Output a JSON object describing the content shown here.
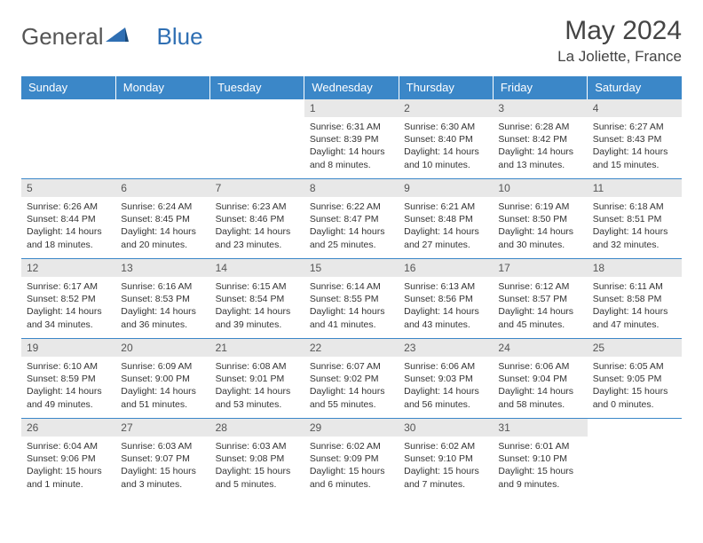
{
  "brand": {
    "word1": "General",
    "word2": "Blue"
  },
  "title": "May 2024",
  "location": "La Joliette, France",
  "colors": {
    "header_bg": "#3b87c8",
    "header_text": "#ffffff",
    "daynum_bg": "#e8e8e8",
    "border": "#3b87c8",
    "text": "#333333",
    "brand_accent": "#2f6fb3"
  },
  "day_headers": [
    "Sunday",
    "Monday",
    "Tuesday",
    "Wednesday",
    "Thursday",
    "Friday",
    "Saturday"
  ],
  "weeks": [
    [
      {
        "n": "",
        "sunrise": "",
        "sunset": "",
        "daylight1": "",
        "daylight2": ""
      },
      {
        "n": "",
        "sunrise": "",
        "sunset": "",
        "daylight1": "",
        "daylight2": ""
      },
      {
        "n": "",
        "sunrise": "",
        "sunset": "",
        "daylight1": "",
        "daylight2": ""
      },
      {
        "n": "1",
        "sunrise": "Sunrise: 6:31 AM",
        "sunset": "Sunset: 8:39 PM",
        "daylight1": "Daylight: 14 hours",
        "daylight2": "and 8 minutes."
      },
      {
        "n": "2",
        "sunrise": "Sunrise: 6:30 AM",
        "sunset": "Sunset: 8:40 PM",
        "daylight1": "Daylight: 14 hours",
        "daylight2": "and 10 minutes."
      },
      {
        "n": "3",
        "sunrise": "Sunrise: 6:28 AM",
        "sunset": "Sunset: 8:42 PM",
        "daylight1": "Daylight: 14 hours",
        "daylight2": "and 13 minutes."
      },
      {
        "n": "4",
        "sunrise": "Sunrise: 6:27 AM",
        "sunset": "Sunset: 8:43 PM",
        "daylight1": "Daylight: 14 hours",
        "daylight2": "and 15 minutes."
      }
    ],
    [
      {
        "n": "5",
        "sunrise": "Sunrise: 6:26 AM",
        "sunset": "Sunset: 8:44 PM",
        "daylight1": "Daylight: 14 hours",
        "daylight2": "and 18 minutes."
      },
      {
        "n": "6",
        "sunrise": "Sunrise: 6:24 AM",
        "sunset": "Sunset: 8:45 PM",
        "daylight1": "Daylight: 14 hours",
        "daylight2": "and 20 minutes."
      },
      {
        "n": "7",
        "sunrise": "Sunrise: 6:23 AM",
        "sunset": "Sunset: 8:46 PM",
        "daylight1": "Daylight: 14 hours",
        "daylight2": "and 23 minutes."
      },
      {
        "n": "8",
        "sunrise": "Sunrise: 6:22 AM",
        "sunset": "Sunset: 8:47 PM",
        "daylight1": "Daylight: 14 hours",
        "daylight2": "and 25 minutes."
      },
      {
        "n": "9",
        "sunrise": "Sunrise: 6:21 AM",
        "sunset": "Sunset: 8:48 PM",
        "daylight1": "Daylight: 14 hours",
        "daylight2": "and 27 minutes."
      },
      {
        "n": "10",
        "sunrise": "Sunrise: 6:19 AM",
        "sunset": "Sunset: 8:50 PM",
        "daylight1": "Daylight: 14 hours",
        "daylight2": "and 30 minutes."
      },
      {
        "n": "11",
        "sunrise": "Sunrise: 6:18 AM",
        "sunset": "Sunset: 8:51 PM",
        "daylight1": "Daylight: 14 hours",
        "daylight2": "and 32 minutes."
      }
    ],
    [
      {
        "n": "12",
        "sunrise": "Sunrise: 6:17 AM",
        "sunset": "Sunset: 8:52 PM",
        "daylight1": "Daylight: 14 hours",
        "daylight2": "and 34 minutes."
      },
      {
        "n": "13",
        "sunrise": "Sunrise: 6:16 AM",
        "sunset": "Sunset: 8:53 PM",
        "daylight1": "Daylight: 14 hours",
        "daylight2": "and 36 minutes."
      },
      {
        "n": "14",
        "sunrise": "Sunrise: 6:15 AM",
        "sunset": "Sunset: 8:54 PM",
        "daylight1": "Daylight: 14 hours",
        "daylight2": "and 39 minutes."
      },
      {
        "n": "15",
        "sunrise": "Sunrise: 6:14 AM",
        "sunset": "Sunset: 8:55 PM",
        "daylight1": "Daylight: 14 hours",
        "daylight2": "and 41 minutes."
      },
      {
        "n": "16",
        "sunrise": "Sunrise: 6:13 AM",
        "sunset": "Sunset: 8:56 PM",
        "daylight1": "Daylight: 14 hours",
        "daylight2": "and 43 minutes."
      },
      {
        "n": "17",
        "sunrise": "Sunrise: 6:12 AM",
        "sunset": "Sunset: 8:57 PM",
        "daylight1": "Daylight: 14 hours",
        "daylight2": "and 45 minutes."
      },
      {
        "n": "18",
        "sunrise": "Sunrise: 6:11 AM",
        "sunset": "Sunset: 8:58 PM",
        "daylight1": "Daylight: 14 hours",
        "daylight2": "and 47 minutes."
      }
    ],
    [
      {
        "n": "19",
        "sunrise": "Sunrise: 6:10 AM",
        "sunset": "Sunset: 8:59 PM",
        "daylight1": "Daylight: 14 hours",
        "daylight2": "and 49 minutes."
      },
      {
        "n": "20",
        "sunrise": "Sunrise: 6:09 AM",
        "sunset": "Sunset: 9:00 PM",
        "daylight1": "Daylight: 14 hours",
        "daylight2": "and 51 minutes."
      },
      {
        "n": "21",
        "sunrise": "Sunrise: 6:08 AM",
        "sunset": "Sunset: 9:01 PM",
        "daylight1": "Daylight: 14 hours",
        "daylight2": "and 53 minutes."
      },
      {
        "n": "22",
        "sunrise": "Sunrise: 6:07 AM",
        "sunset": "Sunset: 9:02 PM",
        "daylight1": "Daylight: 14 hours",
        "daylight2": "and 55 minutes."
      },
      {
        "n": "23",
        "sunrise": "Sunrise: 6:06 AM",
        "sunset": "Sunset: 9:03 PM",
        "daylight1": "Daylight: 14 hours",
        "daylight2": "and 56 minutes."
      },
      {
        "n": "24",
        "sunrise": "Sunrise: 6:06 AM",
        "sunset": "Sunset: 9:04 PM",
        "daylight1": "Daylight: 14 hours",
        "daylight2": "and 58 minutes."
      },
      {
        "n": "25",
        "sunrise": "Sunrise: 6:05 AM",
        "sunset": "Sunset: 9:05 PM",
        "daylight1": "Daylight: 15 hours",
        "daylight2": "and 0 minutes."
      }
    ],
    [
      {
        "n": "26",
        "sunrise": "Sunrise: 6:04 AM",
        "sunset": "Sunset: 9:06 PM",
        "daylight1": "Daylight: 15 hours",
        "daylight2": "and 1 minute."
      },
      {
        "n": "27",
        "sunrise": "Sunrise: 6:03 AM",
        "sunset": "Sunset: 9:07 PM",
        "daylight1": "Daylight: 15 hours",
        "daylight2": "and 3 minutes."
      },
      {
        "n": "28",
        "sunrise": "Sunrise: 6:03 AM",
        "sunset": "Sunset: 9:08 PM",
        "daylight1": "Daylight: 15 hours",
        "daylight2": "and 5 minutes."
      },
      {
        "n": "29",
        "sunrise": "Sunrise: 6:02 AM",
        "sunset": "Sunset: 9:09 PM",
        "daylight1": "Daylight: 15 hours",
        "daylight2": "and 6 minutes."
      },
      {
        "n": "30",
        "sunrise": "Sunrise: 6:02 AM",
        "sunset": "Sunset: 9:10 PM",
        "daylight1": "Daylight: 15 hours",
        "daylight2": "and 7 minutes."
      },
      {
        "n": "31",
        "sunrise": "Sunrise: 6:01 AM",
        "sunset": "Sunset: 9:10 PM",
        "daylight1": "Daylight: 15 hours",
        "daylight2": "and 9 minutes."
      },
      {
        "n": "",
        "sunrise": "",
        "sunset": "",
        "daylight1": "",
        "daylight2": ""
      }
    ]
  ]
}
